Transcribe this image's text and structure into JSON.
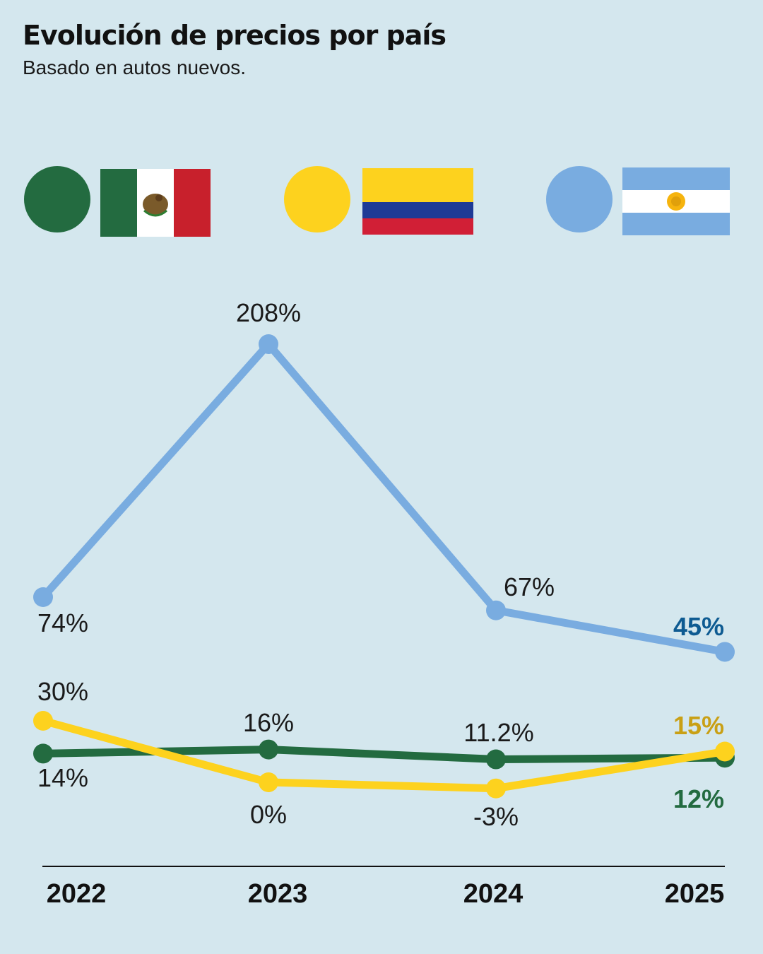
{
  "title": "Evolución de precios por país",
  "subtitle": "Basado en autos nuevos.",
  "colors": {
    "background": "#d4e7ee",
    "mexico": "#236b40",
    "colombia": "#fdd21e",
    "argentina": "#79ace0",
    "argentina_end_label": "#0e5b92",
    "colombia_end_label": "#c9a015",
    "mexico_end_label": "#236b40"
  },
  "legend": [
    {
      "country_flag": "mexico-flag",
      "color": "#236b40"
    },
    {
      "country_flag": "colombia-flag",
      "color": "#fdd21e"
    },
    {
      "country_flag": "argentina-flag",
      "color": "#79ace0"
    }
  ],
  "chart_data": {
    "type": "line",
    "title": "Evolución de precios por país",
    "subtitle": "Basado en autos nuevos.",
    "x": [
      "2022",
      "2023",
      "2024",
      "2025"
    ],
    "series": [
      {
        "key": "argentina",
        "values": [
          74,
          208,
          67,
          45
        ],
        "labels": [
          "74%",
          "208%",
          "67%",
          "45%"
        ]
      },
      {
        "key": "colombia",
        "values": [
          30,
          0,
          -3,
          15
        ],
        "labels": [
          "30%",
          "0%",
          "-3%",
          "15%"
        ]
      },
      {
        "key": "mexico",
        "values": [
          14,
          16,
          11.2,
          12
        ],
        "labels": [
          "14%",
          "16%",
          "11.2%",
          "12%"
        ]
      }
    ],
    "grid": false,
    "legend": "top"
  }
}
